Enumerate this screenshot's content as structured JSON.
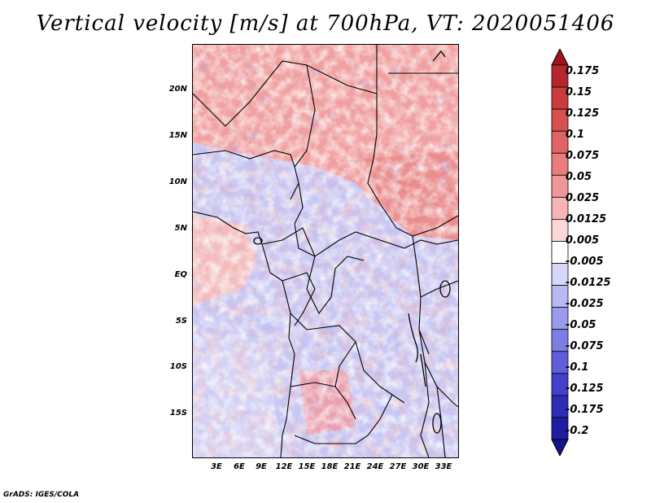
{
  "title": "Vertical velocity [m/s] at 700hPa, VT: 2020051406",
  "credit": "GrADS: IGES/COLA",
  "map": {
    "region": "Central Africa",
    "lon_range": [
      0,
      35
    ],
    "lat_range": [
      -20,
      24
    ],
    "lat_labels": [
      "20N",
      "15N",
      "10N",
      "5N",
      "EQ",
      "5S",
      "10S",
      "15S"
    ],
    "lon_labels": [
      "3E",
      "6E",
      "9E",
      "12E",
      "15E",
      "18E",
      "21E",
      "24E",
      "27E",
      "30E",
      "33E"
    ]
  },
  "colorbar": {
    "levels": [
      "0.175",
      "0.15",
      "0.125",
      "0.1",
      "0.075",
      "0.05",
      "0.025",
      "0.0125",
      "0.005",
      "-0.005",
      "-0.0125",
      "-0.025",
      "-0.05",
      "-0.075",
      "-0.1",
      "-0.125",
      "-0.175",
      "-0.2"
    ],
    "colors": [
      "#a0141e",
      "#b4282d",
      "#c83c3c",
      "#d65050",
      "#e06464",
      "#e87d7d",
      "#f09696",
      "#f7b4b4",
      "#fcd7d7",
      "#ffffff",
      "#d7d7fc",
      "#b9b9f5",
      "#9b9bee",
      "#7d7de6",
      "#5f5fdc",
      "#4141cc",
      "#2d2db4",
      "#1e1ea0",
      "#14148c"
    ]
  }
}
